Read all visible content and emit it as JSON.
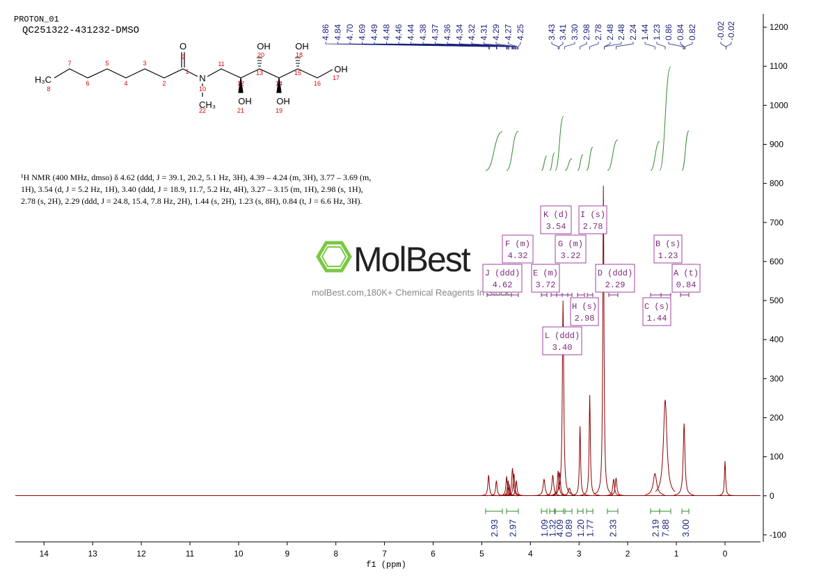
{
  "header": {
    "experiment": "PROTON_01",
    "sample": "QC251322-431232-DMSO"
  },
  "structure": {
    "labels": [
      "H₃C",
      "8",
      "7",
      "6",
      "5",
      "4",
      "3",
      "2",
      "1",
      "9",
      "O",
      "N",
      "10",
      "CH₃",
      "22",
      "11",
      "12",
      "OH",
      "21",
      "13",
      "OH",
      "20",
      "14",
      "OH",
      "19",
      "15",
      "OH",
      "18",
      "16",
      "OH",
      "17"
    ]
  },
  "description": [
    "¹H NMR (400 MHz, dmso) δ 4.62 (ddd, J = 39.1, 20.2, 5.1 Hz, 3H), 4.39 – 4.24 (m, 3H), 3.77 – 3.69 (m,",
    "1H), 3.54 (d, J = 5.2 Hz, 1H), 3.40 (ddd, J = 18.9, 11.7, 5.2 Hz, 4H), 3.27 – 3.15 (m, 1H), 2.98 (s, 1H),",
    "2.78 (s, 2H), 2.29 (ddd, J = 24.8, 15.4, 7.8 Hz, 2H), 1.44 (s, 2H), 1.23 (s, 8H), 0.84 (t, J = 6.6 Hz, 3H)."
  ],
  "watermark": {
    "brand": "MolBest",
    "tagline": "molBest.com,180K+ Chemical Reagents In Stock"
  },
  "chart_data": {
    "type": "spectrum",
    "xlabel": "f1 (ppm)",
    "color": "#8b0000",
    "xlim": [
      14.59,
      -0.73
    ],
    "xticks": [
      14,
      13,
      12,
      11,
      10,
      9,
      8,
      7,
      6,
      5,
      4,
      3,
      2,
      1,
      0
    ],
    "ylim": [
      -118,
      1234
    ],
    "yticks": [
      -100,
      0,
      100,
      200,
      300,
      400,
      500,
      600,
      700,
      800,
      900,
      1000,
      1100,
      1200
    ],
    "x": [
      4.86,
      4.7,
      4.49,
      4.46,
      4.44,
      4.37,
      4.34,
      4.29,
      3.72,
      3.54,
      3.43,
      3.4,
      3.33,
      3.2,
      2.98,
      2.78,
      2.5,
      2.29,
      2.24,
      1.44,
      1.23,
      0.84,
      0
    ],
    "values": [
      53,
      39,
      50,
      39,
      30,
      71,
      57,
      39,
      43,
      53,
      64,
      60,
      500,
      20,
      178,
      258,
      794,
      43,
      46,
      57,
      246,
      185,
      89
    ],
    "peak_picks": [
      4.86,
      4.84,
      {
        "value": 4.7,
        "label": "4.70"
      },
      4.69,
      4.49,
      4.48,
      4.46,
      4.44,
      4.38,
      4.37,
      4.36,
      4.34,
      4.32,
      4.31,
      4.29,
      4.27,
      4.25,
      3.43,
      3.41,
      {
        "value": 3.3,
        "label": "3.30"
      },
      2.98,
      2.78,
      2.48,
      2.48,
      2.24,
      1.44,
      1.23,
      0.86,
      0.84,
      0.82,
      -0.02,
      -0.02
    ],
    "multiplets": [
      {
        "label": "J (ddd)",
        "shift": "4.62"
      },
      {
        "label": "F (m)",
        "shift": "4.32"
      },
      {
        "label": "E (m)",
        "shift": "3.72"
      },
      {
        "label": "K (d)",
        "shift": "3.54"
      },
      {
        "label": "G (m)",
        "shift": "3.22"
      },
      {
        "label": "L (ddd)",
        "shift": "3.40"
      },
      {
        "label": "H (s)",
        "shift": "2.98"
      },
      {
        "label": "I (s)",
        "shift": "2.78"
      },
      {
        "label": "D (ddd)",
        "shift": "2.29"
      },
      {
        "label": "C (s)",
        "shift": "1.44"
      },
      {
        "label": "B (s)",
        "shift": "1.23"
      },
      {
        "label": "A (t)",
        "shift": "0.84"
      }
    ],
    "integrals": [
      2.93,
      2.97,
      1.09,
      1.32,
      4.09,
      0.89,
      {
        "value": 1.2,
        "label": "1.20"
      },
      1.77,
      2.33,
      2.19,
      7.88,
      {
        "value": 3,
        "label": "3.00"
      }
    ]
  }
}
